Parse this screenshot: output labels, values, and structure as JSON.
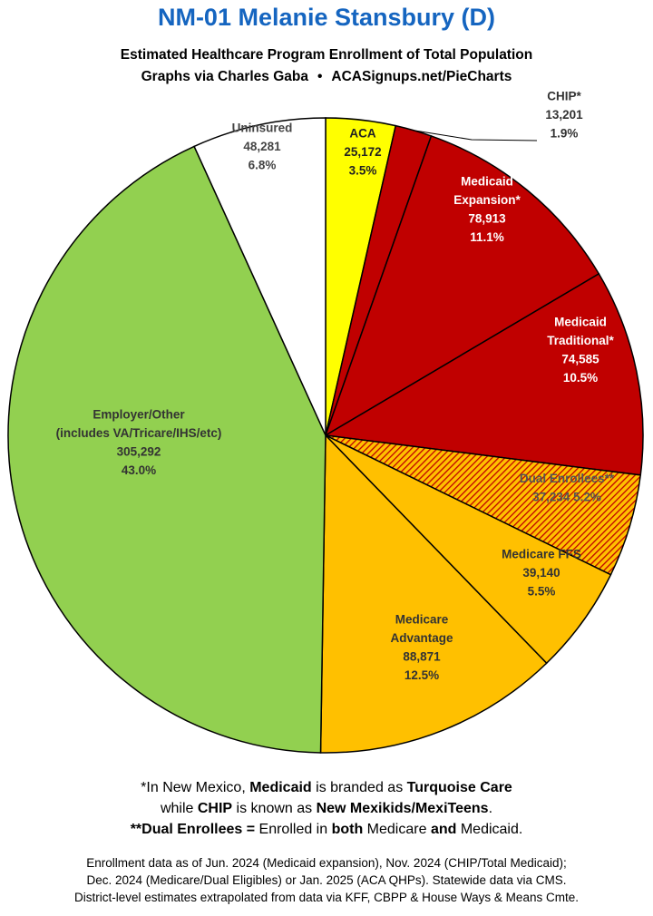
{
  "header": {
    "title": "NM-01 Melanie Stansbury (D)",
    "subtitle": "Estimated Healthcare Program Enrollment of Total Population",
    "credit_left": "Graphs via Charles Gaba",
    "credit_sep": "•",
    "credit_right": "ACASignups.net/PieCharts"
  },
  "chart_data": {
    "type": "pie",
    "start_angle_deg": 0,
    "direction": "clockwise",
    "slices": [
      {
        "key": "aca",
        "name": "ACA",
        "lines": [
          "ACA",
          "25,172",
          "3.5%"
        ],
        "value": 25172,
        "percent": 3.5,
        "color": "#ffff00",
        "text_color": "#222222"
      },
      {
        "key": "chip",
        "name": "CHIP*",
        "lines": [
          "CHIP*",
          "13,201",
          "1.9%"
        ],
        "value": 13201,
        "percent": 1.9,
        "color": "#c00000",
        "text_color": "#333333",
        "outside": true
      },
      {
        "key": "medicaid-expansion",
        "name": "Medicaid Expansion*",
        "lines": [
          "Medicaid",
          "Expansion*",
          "78,913",
          "11.1%"
        ],
        "value": 78913,
        "percent": 11.1,
        "color": "#c00000",
        "text_color": "#ffffff"
      },
      {
        "key": "medicaid-traditional",
        "name": "Medicaid Traditional*",
        "lines": [
          "Medicaid",
          "Traditional*",
          "74,585",
          "10.5%"
        ],
        "value": 74585,
        "percent": 10.5,
        "color": "#c00000",
        "text_color": "#ffffff"
      },
      {
        "key": "dual-enrollees",
        "name": "Dual Enrollees**",
        "lines": [
          "Dual Enrollees**",
          "37,234 5.2%"
        ],
        "value": 37234,
        "percent": 5.2,
        "color": "#ffc000",
        "pattern": "hatch",
        "text_color": "#555555"
      },
      {
        "key": "medicare-ffs",
        "name": "Medicare FFS",
        "lines": [
          "Medicare FFS",
          "39,140",
          "5.5%"
        ],
        "value": 39140,
        "percent": 5.5,
        "color": "#ffc000",
        "text_color": "#333333"
      },
      {
        "key": "medicare-advantage",
        "name": "Medicare Advantage",
        "lines": [
          "Medicare",
          "Advantage",
          "88,871",
          "12.5%"
        ],
        "value": 88871,
        "percent": 12.5,
        "color": "#ffc000",
        "text_color": "#333333"
      },
      {
        "key": "employer-other",
        "name": "Employer/Other (includes VA/Tricare/IHS/etc)",
        "lines": [
          "Employer/Other",
          "(includes VA/Tricare/IHS/etc)",
          "305,292",
          "43.0%"
        ],
        "value": 305292,
        "percent": 43.0,
        "color": "#92d050",
        "text_color": "#333333"
      },
      {
        "key": "uninsured",
        "name": "Uninsured",
        "lines": [
          "Uninsured",
          "48,281",
          "6.8%"
        ],
        "value": 48281,
        "percent": 6.8,
        "color": "#ffffff",
        "text_color": "#444444"
      }
    ]
  },
  "footnotes": {
    "n1_a": "*In New Mexico, ",
    "n1_b": "Medicaid",
    "n1_c": " is branded as ",
    "n1_d": "Turquoise Care",
    "n2_a": "while ",
    "n2_b": "CHIP",
    "n2_c": " is known as ",
    "n2_d": "New Mexikids/MexiTeens",
    "n2_e": ".",
    "n3_a": "**Dual Enrollees = ",
    "n3_b": "Enrolled in ",
    "n3_c": "both",
    "n3_d": " Medicare ",
    "n3_e": "and",
    "n3_f": " Medicaid.",
    "s1": "Enrollment data as of Jun. 2024 (Medicaid expansion), Nov. 2024 (CHIP/Total Medicaid);",
    "s2": "Dec. 2024 (Medicare/Dual Eligibles) or Jan. 2025 (ACA QHPs). Statewide data via CMS.",
    "s3": "District-level estimates extrapolated from data via KFF, CBPP & House Ways & Means Cmte."
  }
}
